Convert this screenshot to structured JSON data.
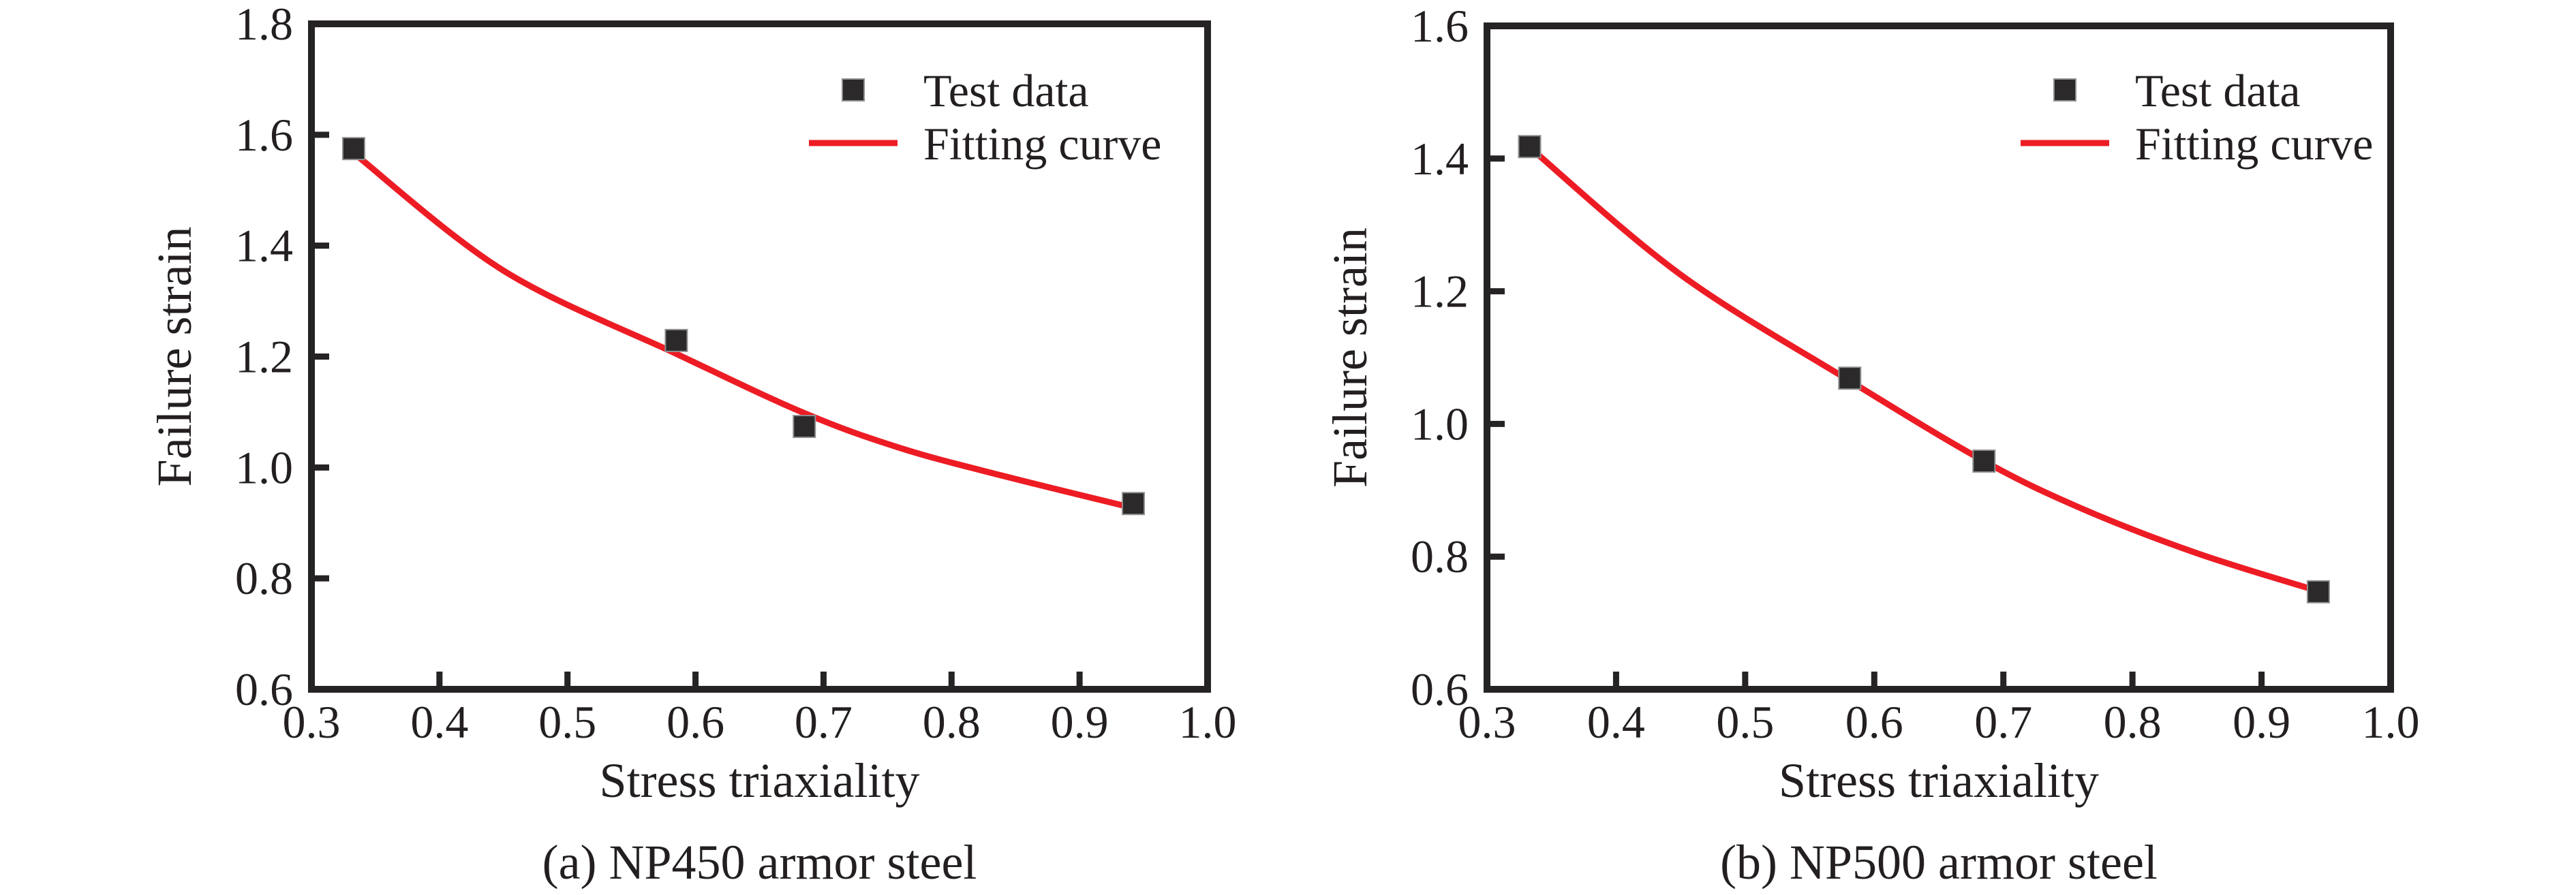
{
  "figure": {
    "background": "#ffffff",
    "axis_color": "#262324",
    "text_color": "#231f20",
    "marker_color": "#2b292a",
    "marker_edge_color": "#8f8f8f",
    "curve_color": "#ed1c24"
  },
  "chart_data": [
    {
      "type": "scatter",
      "caption": "(a) NP450 armor steel",
      "xlabel": "Stress triaxiality",
      "ylabel": "Failure strain",
      "xlim": [
        0.3,
        1.0
      ],
      "ylim": [
        0.6,
        1.8
      ],
      "x_ticks": [
        "0.3",
        "0.4",
        "0.5",
        "0.6",
        "0.7",
        "0.8",
        "0.9",
        "1.0"
      ],
      "y_ticks": [
        "0.6",
        "0.8",
        "1.0",
        "1.2",
        "1.4",
        "1.6",
        "1.8"
      ],
      "grid": false,
      "legend_position": "upper right",
      "series": [
        {
          "name": "Test data",
          "kind": "scatter",
          "marker": "square",
          "color": "#2b292a",
          "points": [
            [
              0.333,
              1.575
            ],
            [
              0.585,
              1.229
            ],
            [
              0.685,
              1.074
            ],
            [
              0.942,
              0.935
            ]
          ]
        },
        {
          "name": "Fitting curve",
          "kind": "line",
          "color": "#ed1c24",
          "points": [
            [
              0.333,
              1.567
            ],
            [
              0.45,
              1.355
            ],
            [
              0.585,
              1.205
            ],
            [
              0.685,
              1.098
            ],
            [
              0.76,
              1.035
            ],
            [
              0.84,
              0.985
            ],
            [
              0.942,
              0.927
            ]
          ]
        }
      ]
    },
    {
      "type": "scatter",
      "caption": "(b) NP500 armor steel",
      "xlabel": "Stress triaxiality",
      "ylabel": "Failure strain",
      "xlim": [
        0.3,
        1.0
      ],
      "ylim": [
        0.6,
        1.6
      ],
      "x_ticks": [
        "0.3",
        "0.4",
        "0.5",
        "0.6",
        "0.7",
        "0.8",
        "0.9",
        "1.0"
      ],
      "y_ticks": [
        "0.6",
        "0.8",
        "1.0",
        "1.2",
        "1.4",
        "1.6"
      ],
      "grid": false,
      "legend_position": "upper right",
      "series": [
        {
          "name": "Test data",
          "kind": "scatter",
          "marker": "square",
          "color": "#2b292a",
          "points": [
            [
              0.333,
              1.418
            ],
            [
              0.581,
              1.069
            ],
            [
              0.685,
              0.944
            ],
            [
              0.944,
              0.747
            ]
          ]
        },
        {
          "name": "Fitting curve",
          "kind": "line",
          "color": "#ed1c24",
          "points": [
            [
              0.333,
              1.417
            ],
            [
              0.45,
              1.225
            ],
            [
              0.581,
              1.065
            ],
            [
              0.685,
              0.944
            ],
            [
              0.76,
              0.873
            ],
            [
              0.85,
              0.805
            ],
            [
              0.944,
              0.748
            ]
          ]
        }
      ]
    }
  ]
}
